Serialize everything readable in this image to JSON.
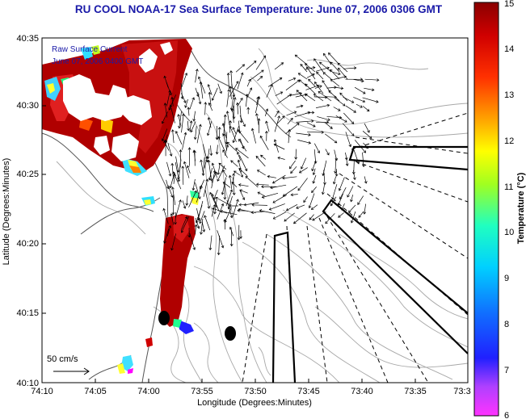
{
  "title": "RU COOL  NOAA-17  Sea Surface Temperature:  June 07, 2006 0306 GMT",
  "overlay": {
    "line1": "Raw Surface Current",
    "line2": "June 07, 2006 0400 GMT"
  },
  "scale_label": "50 cm/s",
  "axes": {
    "xlabel": "Longitude (Degrees:Minutes)",
    "ylabel": "Latitude (Degrees:Minutes)",
    "x_ticks": [
      "74:10",
      "74:05",
      "74:00",
      "73:55",
      "73:50",
      "73:45",
      "73:40",
      "73:35",
      "73:3"
    ],
    "y_ticks": [
      "40:35",
      "40:30",
      "40:25",
      "40:20",
      "40:15",
      "40:10"
    ]
  },
  "colorbar": {
    "label": "Temperature (°C)",
    "min": 6,
    "max": 15,
    "ticks": [
      "15",
      "14",
      "13",
      "12",
      "11",
      "10",
      "9",
      "8",
      "7",
      "6"
    ]
  }
}
